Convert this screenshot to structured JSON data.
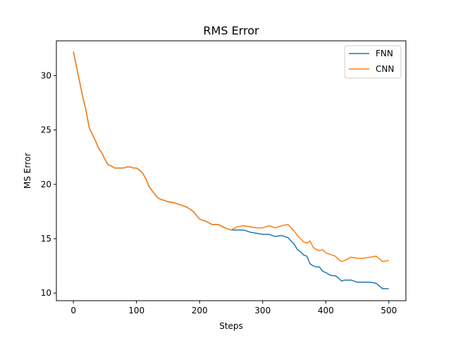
{
  "chart_data": {
    "type": "line",
    "title": "RMS Error",
    "xlabel": "Steps",
    "ylabel": "MS Error",
    "xlim": [
      -27,
      527
    ],
    "ylim": [
      9.3,
      33.2
    ],
    "xticks": [
      0,
      100,
      200,
      300,
      400,
      500
    ],
    "yticks": [
      10,
      15,
      20,
      25,
      30
    ],
    "grid": false,
    "legend_position": "top-right",
    "series": [
      {
        "name": "FNN",
        "color": "#1f77b4",
        "x": [
          0,
          5,
          10,
          15,
          20,
          25,
          30,
          35,
          40,
          45,
          50,
          55,
          60,
          65,
          70,
          75,
          80,
          85,
          90,
          95,
          100,
          105,
          110,
          115,
          120,
          125,
          130,
          135,
          140,
          150,
          160,
          170,
          180,
          190,
          200,
          210,
          220,
          230,
          240,
          250,
          260,
          270,
          280,
          290,
          300,
          310,
          320,
          330,
          340,
          350,
          355,
          360,
          365,
          370,
          375,
          380,
          385,
          390,
          395,
          400,
          405,
          410,
          415,
          420,
          425,
          430,
          440,
          450,
          460,
          470,
          480,
          490,
          500
        ],
        "y": [
          32.2,
          30.8,
          29.4,
          28.0,
          26.8,
          25.2,
          24.6,
          24.0,
          23.3,
          22.9,
          22.3,
          21.8,
          21.7,
          21.5,
          21.5,
          21.5,
          21.5,
          21.6,
          21.6,
          21.5,
          21.5,
          21.3,
          21.0,
          20.5,
          19.8,
          19.4,
          19.0,
          18.7,
          18.6,
          18.4,
          18.3,
          18.1,
          17.9,
          17.5,
          16.8,
          16.6,
          16.3,
          16.3,
          16.0,
          15.8,
          15.8,
          15.8,
          15.6,
          15.5,
          15.4,
          15.4,
          15.2,
          15.3,
          15.1,
          14.5,
          14.0,
          13.8,
          13.5,
          13.4,
          12.7,
          12.5,
          12.4,
          12.4,
          12.0,
          11.9,
          11.7,
          11.6,
          11.6,
          11.4,
          11.1,
          11.2,
          11.2,
          11.0,
          11.0,
          11.0,
          10.9,
          10.4,
          10.4
        ]
      },
      {
        "name": "CNN",
        "color": "#ff7f0e",
        "x": [
          0,
          5,
          10,
          15,
          20,
          25,
          30,
          35,
          40,
          45,
          50,
          55,
          60,
          65,
          70,
          75,
          80,
          85,
          90,
          95,
          100,
          105,
          110,
          115,
          120,
          125,
          130,
          135,
          140,
          150,
          160,
          170,
          180,
          190,
          200,
          210,
          220,
          230,
          240,
          250,
          260,
          270,
          280,
          290,
          300,
          310,
          320,
          330,
          340,
          345,
          350,
          355,
          360,
          365,
          370,
          375,
          380,
          385,
          390,
          395,
          400,
          405,
          410,
          415,
          420,
          425,
          430,
          440,
          450,
          460,
          470,
          480,
          490,
          500
        ],
        "y": [
          32.2,
          30.8,
          29.4,
          28.0,
          26.8,
          25.2,
          24.6,
          24.0,
          23.3,
          22.9,
          22.3,
          21.8,
          21.7,
          21.5,
          21.5,
          21.5,
          21.5,
          21.6,
          21.6,
          21.5,
          21.5,
          21.3,
          21.0,
          20.5,
          19.8,
          19.4,
          19.0,
          18.7,
          18.6,
          18.4,
          18.3,
          18.1,
          17.9,
          17.5,
          16.8,
          16.6,
          16.3,
          16.3,
          16.0,
          15.8,
          16.1,
          16.2,
          16.1,
          16.0,
          16.0,
          16.2,
          16.0,
          16.2,
          16.3,
          16.0,
          15.7,
          15.3,
          15.0,
          14.7,
          14.6,
          14.8,
          14.2,
          14.0,
          13.9,
          14.0,
          13.7,
          13.6,
          13.5,
          13.4,
          13.1,
          12.9,
          13.0,
          13.3,
          13.2,
          13.2,
          13.3,
          13.4,
          12.9,
          13.0
        ]
      }
    ]
  }
}
